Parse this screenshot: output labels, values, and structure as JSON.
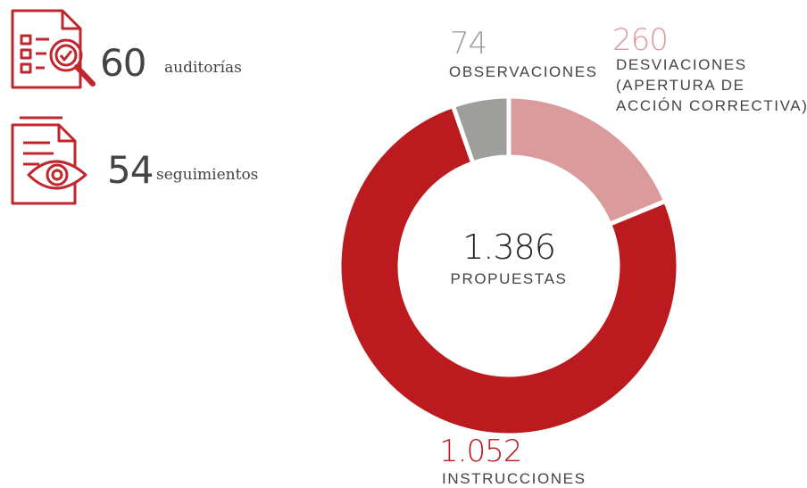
{
  "chart_data": {
    "type": "donut",
    "categories": [
      "DESVIACIONES (APERTURA DE ACCIÓN CORRECTIVA)",
      "INSTRUCCIONES",
      "OBSERVACIONES"
    ],
    "values": [
      260,
      1052,
      74
    ],
    "value_labels": [
      "260",
      "1.052",
      "74"
    ],
    "colors": [
      "#db9a9b",
      "#bb1b1e",
      "#9e9e9c"
    ],
    "total": {
      "value": 1386,
      "label": "1.386"
    },
    "total_text": "PROPUESTAS"
  },
  "stats": [
    {
      "value": 60,
      "label": "auditorías"
    },
    {
      "value": 54,
      "label": "seguimientos"
    }
  ]
}
